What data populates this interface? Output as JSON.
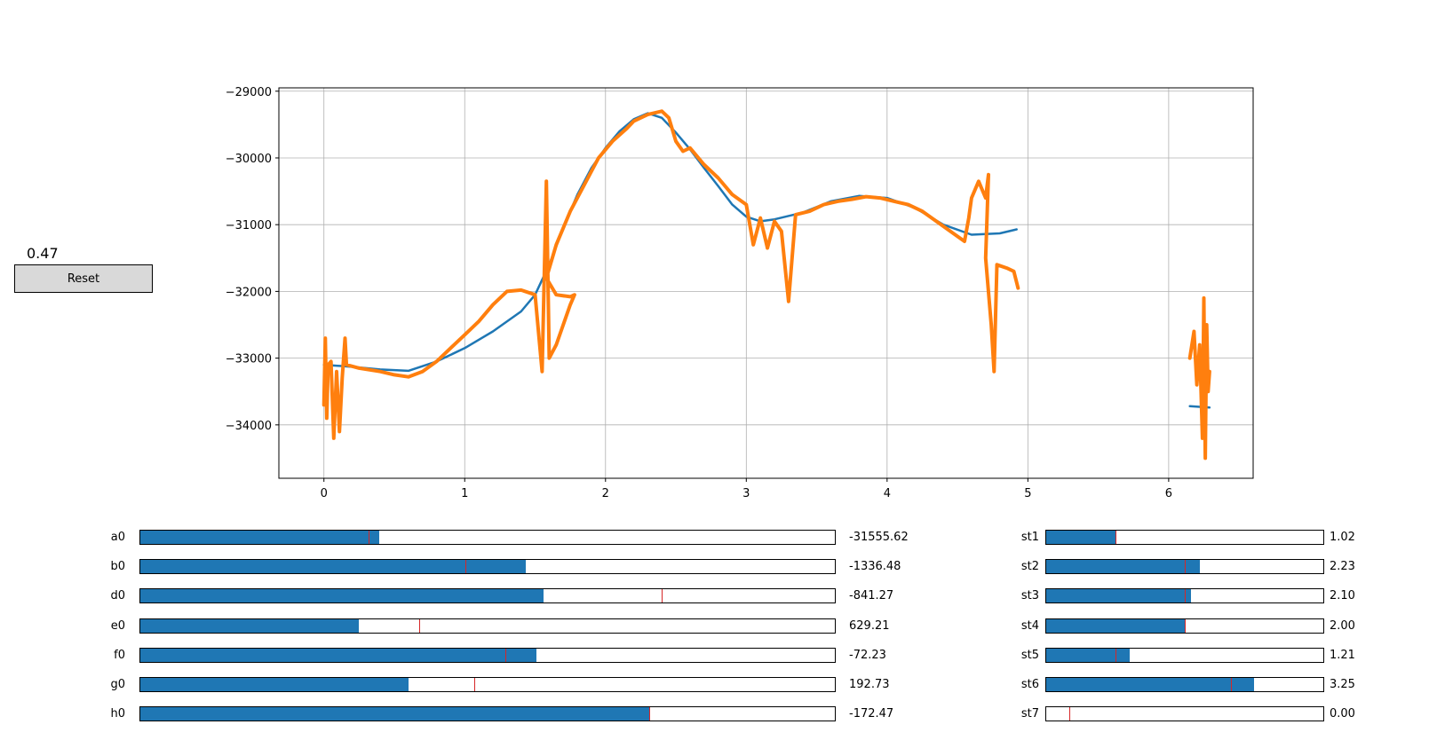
{
  "value_text": "0.47",
  "reset_label": "Reset",
  "chart_data": {
    "type": "scatter",
    "title": "",
    "xlabel": "",
    "ylabel": "",
    "xlim": [
      -0.32,
      6.6
    ],
    "ylim": [
      -34800,
      -28950
    ],
    "xticks": [
      0,
      1,
      2,
      3,
      4,
      5,
      6
    ],
    "yticks": [
      -29000,
      -30000,
      -31000,
      -32000,
      -33000,
      -34000
    ],
    "grid": true,
    "series": [
      {
        "color": "#1f77b4",
        "points": [
          [
            0.0,
            -33100
          ],
          [
            0.2,
            -33130
          ],
          [
            0.4,
            -33170
          ],
          [
            0.6,
            -33190
          ],
          [
            0.8,
            -33050
          ],
          [
            1.0,
            -32850
          ],
          [
            1.2,
            -32600
          ],
          [
            1.4,
            -32300
          ],
          [
            1.5,
            -32050
          ],
          [
            1.6,
            -31600
          ],
          [
            1.7,
            -31050
          ],
          [
            1.8,
            -30550
          ],
          [
            1.9,
            -30150
          ],
          [
            2.0,
            -29850
          ],
          [
            2.1,
            -29600
          ],
          [
            2.2,
            -29420
          ],
          [
            2.3,
            -29330
          ],
          [
            2.4,
            -29400
          ],
          [
            2.5,
            -29620
          ],
          [
            2.6,
            -29870
          ],
          [
            2.7,
            -30150
          ],
          [
            2.8,
            -30420
          ],
          [
            2.9,
            -30700
          ],
          [
            3.0,
            -30880
          ],
          [
            3.1,
            -30950
          ],
          [
            3.2,
            -30920
          ],
          [
            3.4,
            -30820
          ],
          [
            3.6,
            -30650
          ],
          [
            3.8,
            -30570
          ],
          [
            4.0,
            -30600
          ],
          [
            4.2,
            -30750
          ],
          [
            4.4,
            -31000
          ],
          [
            4.6,
            -31150
          ],
          [
            4.8,
            -31130
          ],
          [
            4.92,
            -31070
          ],
          null,
          [
            6.15,
            -33720
          ],
          [
            6.22,
            -33730
          ],
          [
            6.29,
            -33740
          ]
        ]
      },
      {
        "color": "#ff7f0e",
        "points": [
          [
            0.0,
            -33700
          ],
          [
            0.01,
            -32700
          ],
          [
            0.02,
            -33900
          ],
          [
            0.03,
            -33100
          ],
          [
            0.05,
            -33050
          ],
          [
            0.07,
            -34200
          ],
          [
            0.09,
            -33200
          ],
          [
            0.11,
            -34100
          ],
          [
            0.13,
            -33300
          ],
          [
            0.15,
            -32700
          ],
          [
            0.16,
            -33100
          ],
          [
            0.25,
            -33150
          ],
          [
            0.4,
            -33200
          ],
          [
            0.5,
            -33250
          ],
          [
            0.6,
            -33280
          ],
          [
            0.7,
            -33200
          ],
          [
            0.8,
            -33050
          ],
          [
            0.9,
            -32850
          ],
          [
            1.0,
            -32650
          ],
          [
            1.1,
            -32450
          ],
          [
            1.2,
            -32200
          ],
          [
            1.3,
            -32000
          ],
          [
            1.4,
            -31980
          ],
          [
            1.5,
            -32050
          ],
          [
            1.55,
            -33200
          ],
          [
            1.58,
            -30350
          ],
          [
            1.6,
            -33000
          ],
          [
            1.65,
            -32800
          ],
          [
            1.7,
            -32500
          ],
          [
            1.75,
            -32200
          ],
          [
            1.78,
            -32050
          ],
          [
            1.75,
            -32080
          ],
          [
            1.65,
            -32050
          ],
          [
            1.58,
            -31800
          ],
          [
            1.65,
            -31300
          ],
          [
            1.75,
            -30800
          ],
          [
            1.85,
            -30400
          ],
          [
            1.95,
            -30000
          ],
          [
            2.05,
            -29750
          ],
          [
            2.15,
            -29560
          ],
          [
            2.2,
            -29450
          ],
          [
            2.3,
            -29350
          ],
          [
            2.4,
            -29300
          ],
          [
            2.45,
            -29400
          ],
          [
            2.5,
            -29750
          ],
          [
            2.55,
            -29900
          ],
          [
            2.6,
            -29850
          ],
          [
            2.7,
            -30100
          ],
          [
            2.8,
            -30300
          ],
          [
            2.9,
            -30550
          ],
          [
            3.0,
            -30700
          ],
          [
            3.05,
            -31300
          ],
          [
            3.1,
            -30900
          ],
          [
            3.15,
            -31350
          ],
          [
            3.2,
            -30950
          ],
          [
            3.25,
            -31100
          ],
          [
            3.3,
            -32150
          ],
          [
            3.35,
            -30850
          ],
          [
            3.45,
            -30800
          ],
          [
            3.55,
            -30700
          ],
          [
            3.65,
            -30650
          ],
          [
            3.75,
            -30620
          ],
          [
            3.85,
            -30580
          ],
          [
            3.95,
            -30600
          ],
          [
            4.05,
            -30650
          ],
          [
            4.15,
            -30700
          ],
          [
            4.25,
            -30800
          ],
          [
            4.35,
            -30950
          ],
          [
            4.45,
            -31100
          ],
          [
            4.55,
            -31250
          ],
          [
            4.58,
            -30900
          ],
          [
            4.6,
            -30600
          ],
          [
            4.65,
            -30350
          ],
          [
            4.7,
            -30600
          ],
          [
            4.72,
            -30250
          ],
          [
            4.7,
            -31500
          ],
          [
            4.74,
            -32500
          ],
          [
            4.76,
            -33200
          ],
          [
            4.78,
            -31600
          ],
          [
            4.85,
            -31650
          ],
          [
            4.9,
            -31700
          ],
          [
            4.93,
            -31950
          ],
          null,
          [
            6.15,
            -33000
          ],
          [
            6.18,
            -32600
          ],
          [
            6.2,
            -33400
          ],
          [
            6.22,
            -32800
          ],
          [
            6.24,
            -34200
          ],
          [
            6.25,
            -32100
          ],
          [
            6.26,
            -34500
          ],
          [
            6.27,
            -32500
          ],
          [
            6.28,
            -33500
          ],
          [
            6.29,
            -33200
          ]
        ]
      }
    ]
  },
  "sliders_left": [
    {
      "label": "a0",
      "value": "-31555.62",
      "fill": 0.344,
      "init": 0.329
    },
    {
      "label": "b0",
      "value": "-1336.48",
      "fill": 0.555,
      "init": 0.468
    },
    {
      "label": "d0",
      "value": "-841.27",
      "fill": 0.58,
      "init": 0.75
    },
    {
      "label": "e0",
      "value": "629.21",
      "fill": 0.314,
      "init": 0.401
    },
    {
      "label": "f0",
      "value": "-72.23",
      "fill": 0.57,
      "init": 0.526
    },
    {
      "label": "g0",
      "value": "192.73",
      "fill": 0.386,
      "init": 0.481
    },
    {
      "label": "h0",
      "value": "-172.47",
      "fill": 0.733,
      "init": 0.733
    }
  ],
  "sliders_right": [
    {
      "label": "st1",
      "value": "1.02",
      "fill": 0.25,
      "init": 0.25
    },
    {
      "label": "st2",
      "value": "2.23",
      "fill": 0.556,
      "init": 0.5
    },
    {
      "label": "st3",
      "value": "2.10",
      "fill": 0.522,
      "init": 0.5
    },
    {
      "label": "st4",
      "value": "2.00",
      "fill": 0.5,
      "init": 0.5
    },
    {
      "label": "st5",
      "value": "1.21",
      "fill": 0.3,
      "init": 0.25
    },
    {
      "label": "st6",
      "value": "3.25",
      "fill": 0.75,
      "init": 0.667
    },
    {
      "label": "st7",
      "value": "0.00",
      "fill": 0.0,
      "init": 0.083
    }
  ]
}
